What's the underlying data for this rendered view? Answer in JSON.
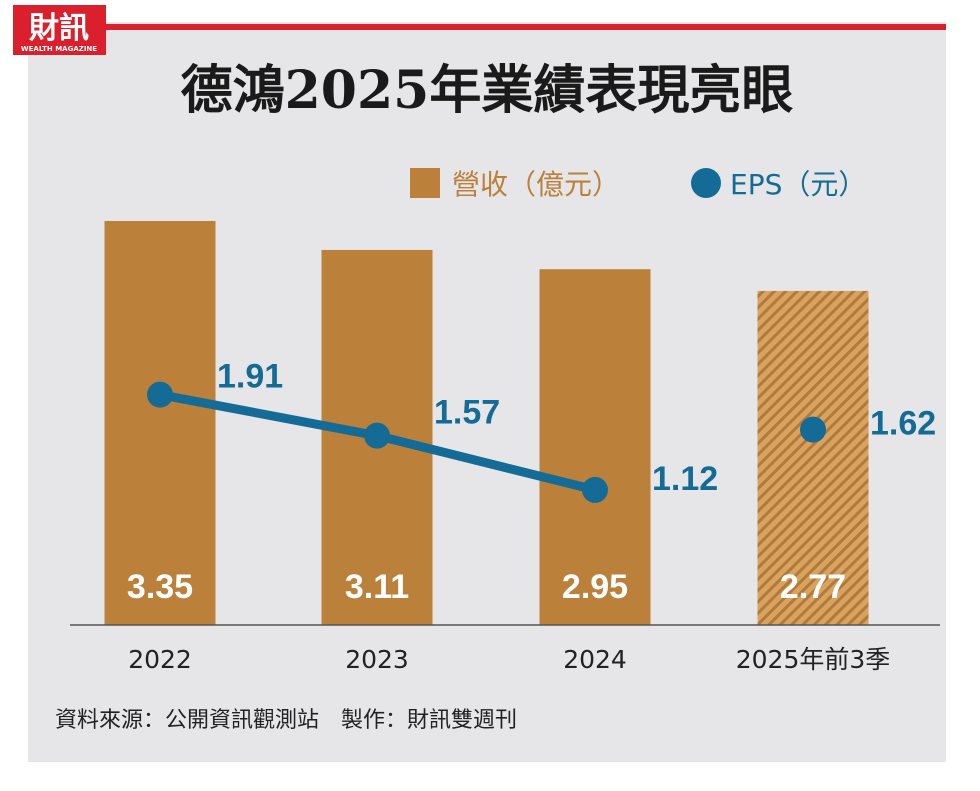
{
  "logo": {
    "text": "財訊",
    "subtext": "WEALTH MAGAZINE"
  },
  "source": "資料來源：公開資訊觀測站　製作：財訊雙週刊",
  "colors": {
    "bar": "#bb803a",
    "eps": "#136b96",
    "accent": "#d9202c",
    "panel": "#e6e6e8"
  },
  "chart_data": {
    "type": "bar+line",
    "title": "德鴻2025年業績表現亮眼",
    "categories": [
      "2022",
      "2023",
      "2024",
      "2025年前3季"
    ],
    "legend_position": "top-right",
    "series": [
      {
        "name": "營收（億元）",
        "type": "bar",
        "values": [
          3.35,
          3.11,
          2.95,
          2.77
        ],
        "labels": [
          "3.35",
          "3.11",
          "2.95",
          "2.77"
        ],
        "hatched": [
          false,
          false,
          false,
          true
        ]
      },
      {
        "name": "EPS（元）",
        "type": "line",
        "values": [
          1.91,
          1.57,
          1.12,
          1.62
        ],
        "labels": [
          "1.91",
          "1.57",
          "1.12",
          "1.62"
        ],
        "connected": [
          true,
          true,
          true,
          false
        ]
      }
    ],
    "grid": false
  }
}
